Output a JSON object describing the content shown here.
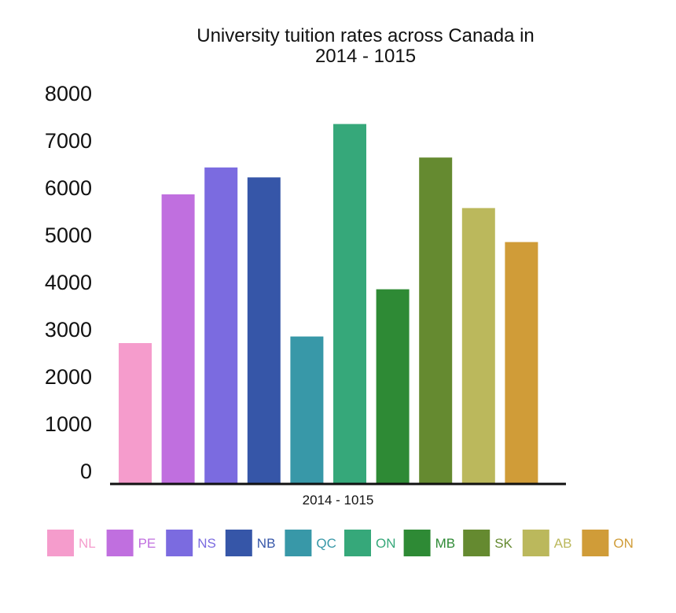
{
  "chart_data": {
    "type": "bar",
    "title_lines": [
      "University tuition rates across Canada in",
      "2014 - 1015"
    ],
    "categories": [
      "2014 - 1015"
    ],
    "series": [
      {
        "name": "NL",
        "values": [
          2700
        ],
        "color": "#f59ccc"
      },
      {
        "name": "PE",
        "values": [
          5850
        ],
        "color": "#c06fdf"
      },
      {
        "name": "NS",
        "values": [
          6420
        ],
        "color": "#7b6be0"
      },
      {
        "name": "NB",
        "values": [
          6210
        ],
        "color": "#3656a8"
      },
      {
        "name": "QC",
        "values": [
          2840
        ],
        "color": "#3898a8"
      },
      {
        "name": "ON",
        "values": [
          7340
        ],
        "color": "#36a87a"
      },
      {
        "name": "MB",
        "values": [
          3840
        ],
        "color": "#2e8a35"
      },
      {
        "name": "SK",
        "values": [
          6630
        ],
        "color": "#658a30"
      },
      {
        "name": "AB",
        "values": [
          5560
        ],
        "color": "#bbb85c"
      },
      {
        "name": "ON",
        "values": [
          4840
        ],
        "color": "#d09c38"
      }
    ],
    "yticks": [
      "8000",
      "7000",
      "6000",
      "5000",
      "4000",
      "3000",
      "2000",
      "1000",
      "0"
    ],
    "ylim": [
      0,
      8000
    ],
    "grid": false,
    "legend_position": "bottom"
  }
}
